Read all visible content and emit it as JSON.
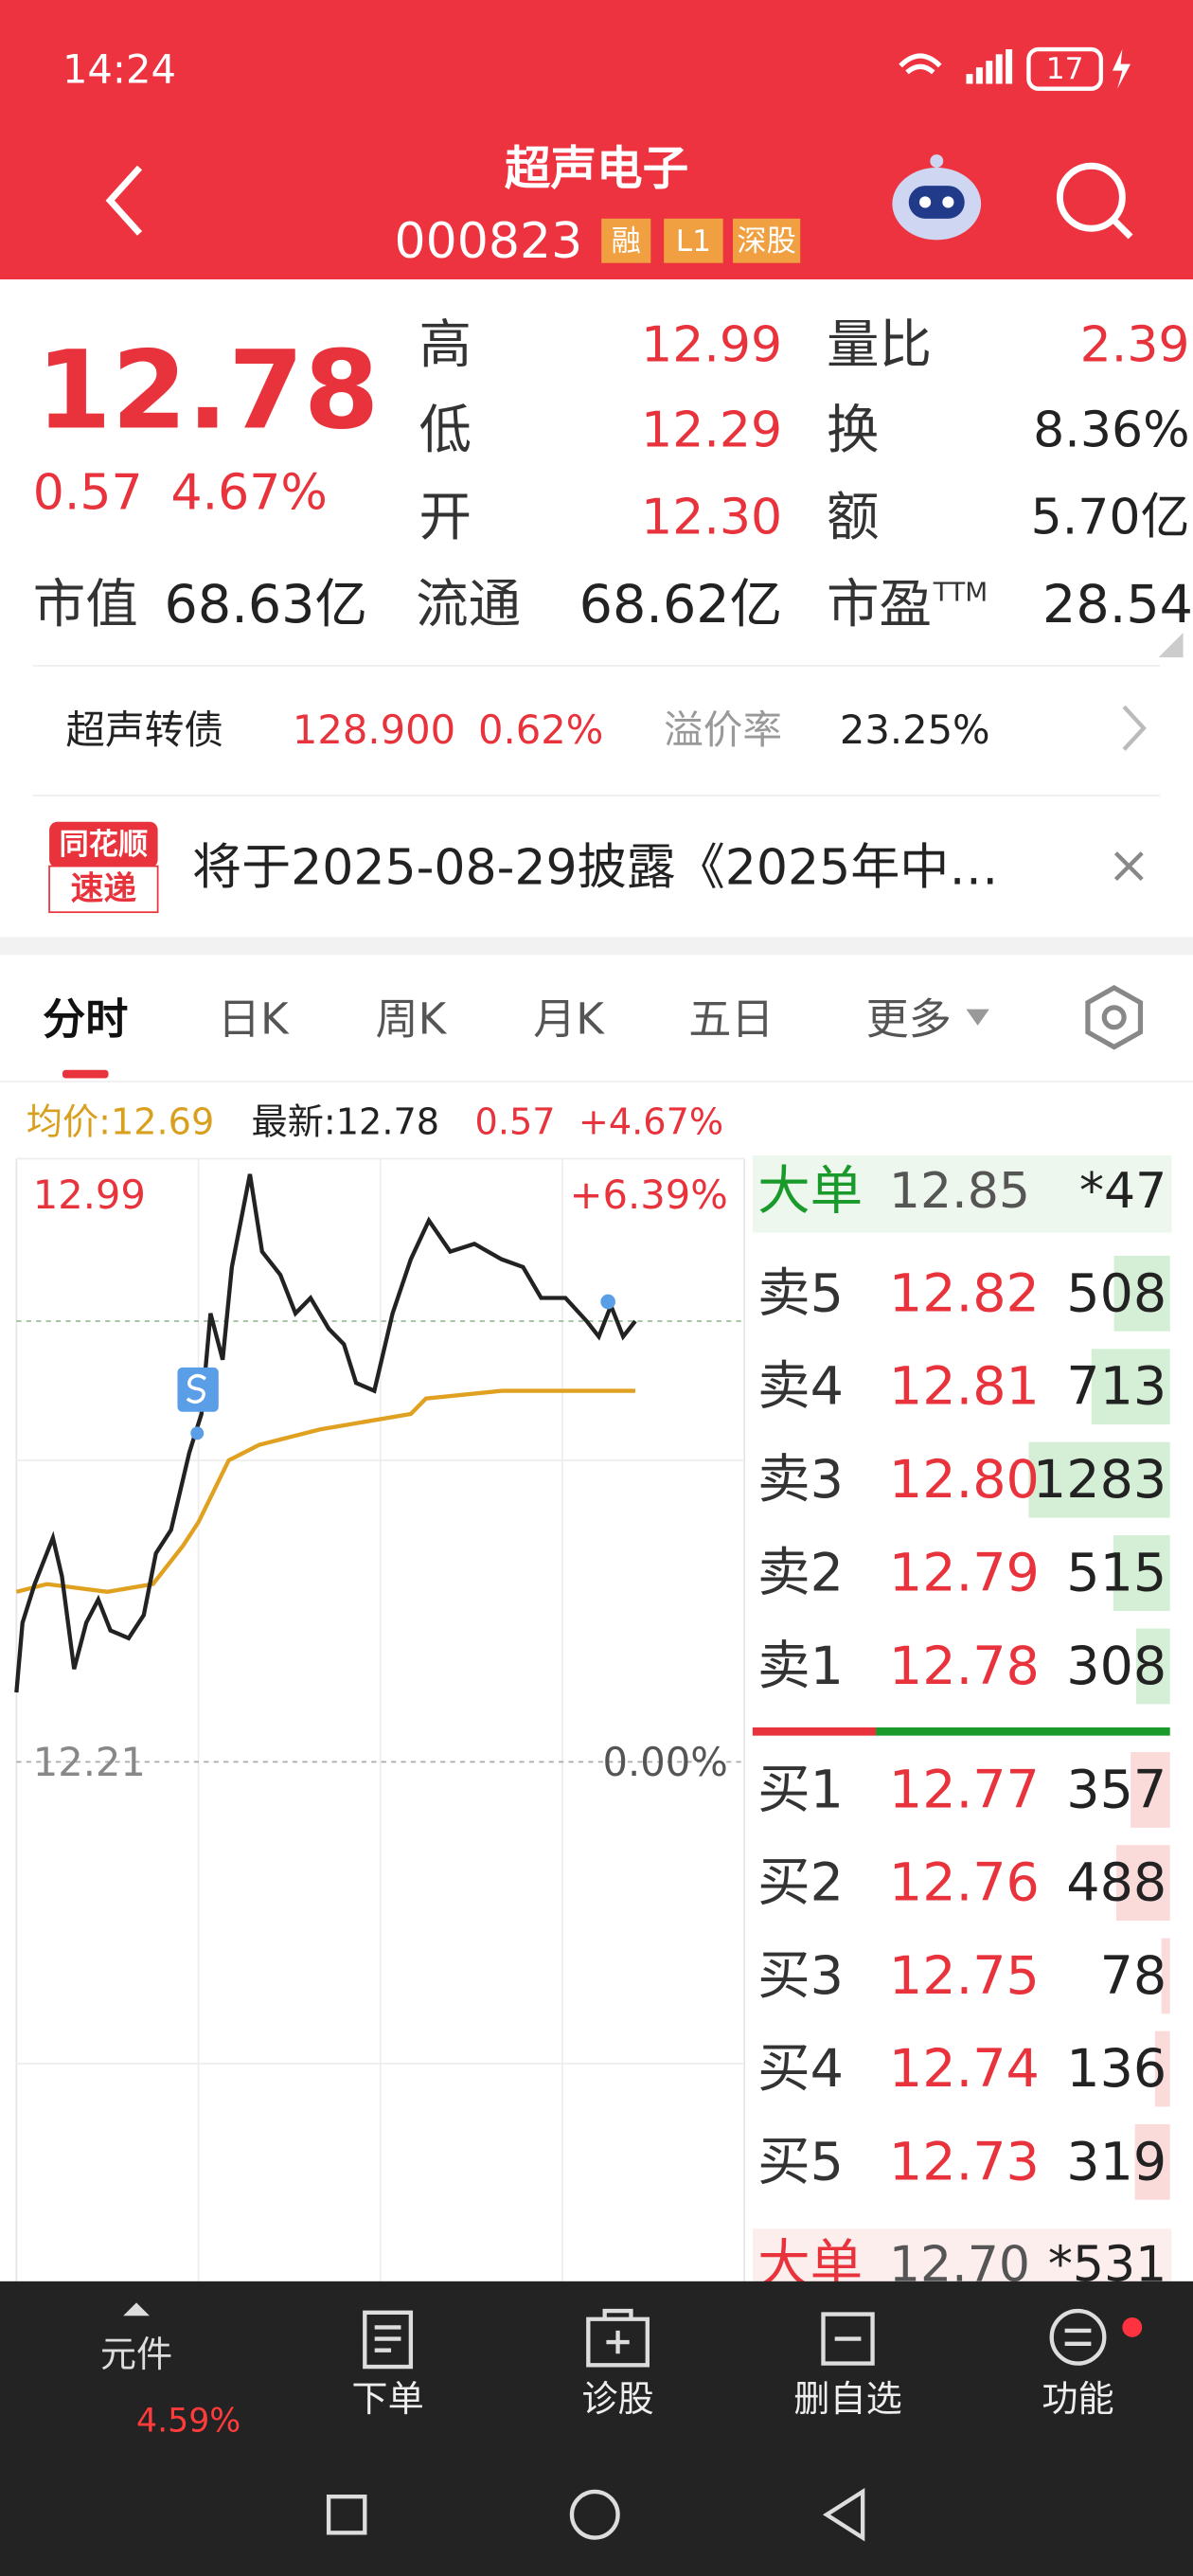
{
  "status": {
    "time": "14:24",
    "battery": "17"
  },
  "header": {
    "name": "超声电子",
    "code": "000823",
    "tags": [
      "融",
      "L1",
      "深股"
    ]
  },
  "quote": {
    "price": "12.78",
    "change": "0.57",
    "percent": "4.67%",
    "stats": [
      [
        "高",
        "12.99"
      ],
      [
        "低",
        "12.29"
      ],
      [
        "开",
        "12.30"
      ],
      [
        "量比",
        "2.39"
      ],
      [
        "换",
        "8.36%"
      ],
      [
        "额",
        "5.70亿"
      ]
    ],
    "bottom": {
      "cap_label": "市值",
      "cap": "68.63亿",
      "float_label": "流通",
      "float": "68.62亿",
      "pe_label": "市盈",
      "pe_sup": "TTM",
      "pe": "28.54"
    }
  },
  "bond": {
    "name": "超声转债",
    "price": "128.900",
    "percent": "0.62%",
    "premium_label": "溢价率",
    "premium": "23.25%"
  },
  "notice": {
    "logo": [
      "同花顺",
      "速递"
    ],
    "text": "将于2025-08-29披露《2025年中…"
  },
  "tabs": [
    "分时",
    "日K",
    "周K",
    "月K",
    "五日",
    "更多"
  ],
  "info": {
    "average": "均价:12.69",
    "latest": "最新:12.78",
    "change": "0.57",
    "percent": "+4.67%"
  },
  "chart_data": {
    "type": "line",
    "xlim": [
      0,
      240
    ],
    "xticks": [
      60,
      120,
      180
    ],
    "ylim": [
      11.43,
      12.99
    ],
    "yticks": [
      12.21,
      12.99
    ],
    "ytick_percent": [
      "0.00%",
      "+6.39%"
    ],
    "reference": 12.78,
    "price": {
      "color": "#222222",
      "x": [
        0,
        2,
        6,
        12,
        15,
        19,
        23,
        27,
        31,
        37,
        42,
        46,
        51,
        57,
        61,
        64,
        68,
        71,
        77,
        81,
        87,
        92,
        97,
        103,
        108,
        112,
        118,
        124,
        130,
        136,
        143,
        151,
        160,
        167,
        173,
        181,
        188,
        192,
        196,
        200,
        204
      ],
      "values": [
        12.3,
        12.39,
        12.44,
        12.5,
        12.45,
        12.33,
        12.39,
        12.42,
        12.38,
        12.37,
        12.4,
        12.48,
        12.51,
        12.61,
        12.66,
        12.79,
        12.73,
        12.85,
        12.97,
        12.87,
        12.84,
        12.79,
        12.81,
        12.77,
        12.75,
        12.7,
        12.69,
        12.79,
        12.86,
        12.91,
        12.87,
        12.88,
        12.86,
        12.85,
        12.81,
        12.81,
        12.78,
        12.76,
        12.8,
        12.76,
        12.78
      ]
    },
    "average": {
      "color": "#e0a020",
      "x": [
        0,
        10,
        30,
        45,
        55,
        60,
        70,
        80,
        100,
        130,
        135,
        160,
        204
      ],
      "values": [
        12.43,
        12.44,
        12.43,
        12.44,
        12.49,
        12.52,
        12.6,
        12.62,
        12.64,
        12.66,
        12.68,
        12.69,
        12.69
      ]
    }
  },
  "orderbook": {
    "big_sell": {
      "label": "大单",
      "price": "12.85",
      "volume": "*47"
    },
    "asks": [
      {
        "label": "卖5",
        "price": "12.82",
        "volume": 508
      },
      {
        "label": "卖4",
        "price": "12.81",
        "volume": 713
      },
      {
        "label": "卖3",
        "price": "12.80",
        "volume": 1283
      },
      {
        "label": "卖2",
        "price": "12.79",
        "volume": 515
      },
      {
        "label": "卖1",
        "price": "12.78",
        "volume": 308
      }
    ],
    "bids": [
      {
        "label": "买1",
        "price": "12.77",
        "volume": 357
      },
      {
        "label": "买2",
        "price": "12.76",
        "volume": 488
      },
      {
        "label": "买3",
        "price": "12.75",
        "volume": 78
      },
      {
        "label": "买4",
        "price": "12.74",
        "volume": 136
      },
      {
        "label": "买5",
        "price": "12.73",
        "volume": 319
      }
    ],
    "big_buy": {
      "label": "大单",
      "price": "12.70",
      "volume": "*531"
    }
  },
  "nav": {
    "items": [
      "元件",
      "下单",
      "诊股",
      "删自选",
      "功能"
    ],
    "sub": "4.59%"
  }
}
